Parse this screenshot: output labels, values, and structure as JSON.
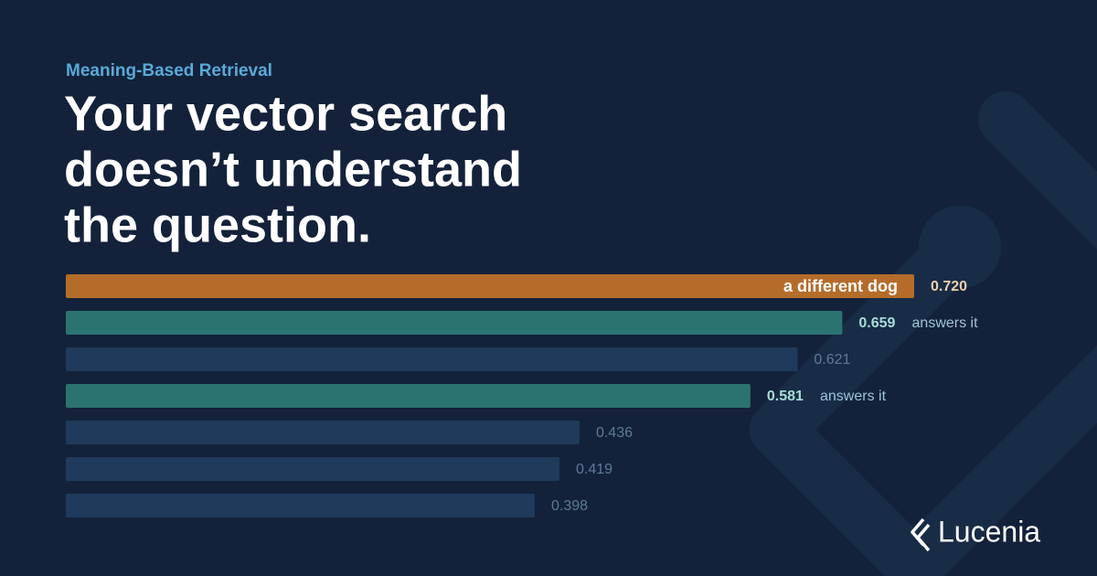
{
  "eyebrow": "Meaning-Based Retrieval",
  "title_lines": [
    "Your vector search",
    "doesn’t understand",
    "the question."
  ],
  "brand": "Lucenia",
  "chart_data": {
    "type": "bar",
    "orientation": "horizontal",
    "values": [
      0.72,
      0.659,
      0.621,
      0.581,
      0.436,
      0.419,
      0.398
    ],
    "value_labels": [
      "0.720",
      "0.659",
      "0.621",
      "0.581",
      "0.436",
      "0.419",
      "0.398"
    ],
    "colors": [
      "#b56c2a",
      "#2b7371",
      "#1f3a5b",
      "#2b7371",
      "#1f3a5b",
      "#1f3a5b",
      "#1f3a5b"
    ],
    "label_colors": [
      "#f0cfae",
      "#a8dcd8",
      "#5e7a97",
      "#a8dcd8",
      "#5e7a97",
      "#5e7a97",
      "#5e7a97"
    ],
    "bar_notes": [
      {
        "text": "a different dog",
        "inside": true
      },
      {
        "text": "answers it",
        "inside": false
      },
      null,
      {
        "text": "answers it",
        "inside": false
      },
      null,
      null,
      null
    ],
    "xlim": [
      0,
      0.72
    ]
  }
}
